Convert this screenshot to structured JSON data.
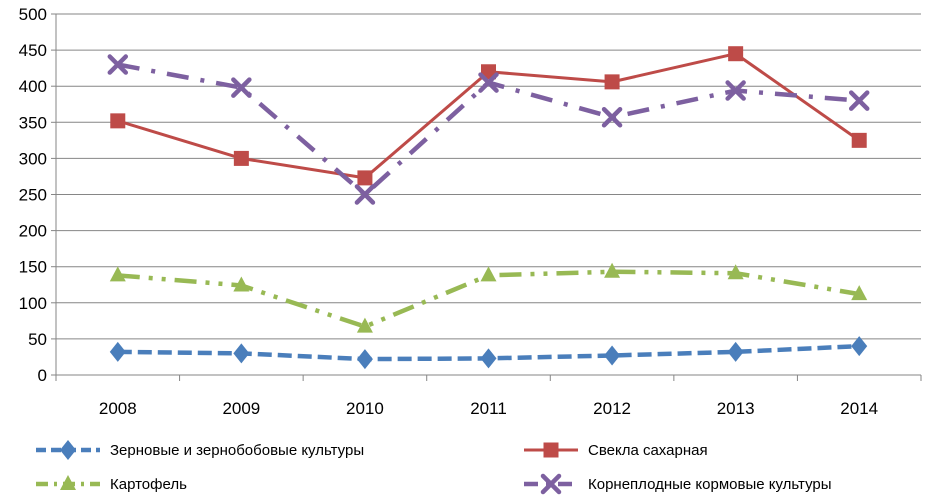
{
  "chart_data": {
    "type": "line",
    "title": "",
    "xlabel": "",
    "ylabel": "",
    "x": [
      "2008",
      "2009",
      "2010",
      "2011",
      "2012",
      "2013",
      "2014"
    ],
    "ylim": [
      0,
      500
    ],
    "yticks": [
      0,
      50,
      100,
      150,
      200,
      250,
      300,
      350,
      400,
      450,
      500
    ],
    "grid": "horizontal",
    "legend_position": "bottom",
    "series": [
      {
        "name": "Зерновые и зернобобовые культуры",
        "values": [
          32,
          30,
          22,
          23,
          27,
          32,
          40
        ],
        "color": "#4a7ebb",
        "dash": "dashed",
        "marker": "diamond"
      },
      {
        "name": "Свекла сахарная",
        "values": [
          352,
          300,
          273,
          420,
          406,
          445,
          325
        ],
        "color": "#be4b48",
        "dash": "solid",
        "marker": "square"
      },
      {
        "name": "Картофель",
        "values": [
          138,
          124,
          67,
          138,
          143,
          141,
          112
        ],
        "color": "#98b954",
        "dash": "dash-dot-dot",
        "marker": "triangle"
      },
      {
        "name": "Корнеплодные кормовые культуры",
        "values": [
          430,
          398,
          250,
          405,
          357,
          394,
          380
        ],
        "color": "#7d60a0",
        "dash": "dash-dot",
        "marker": "x"
      }
    ]
  }
}
